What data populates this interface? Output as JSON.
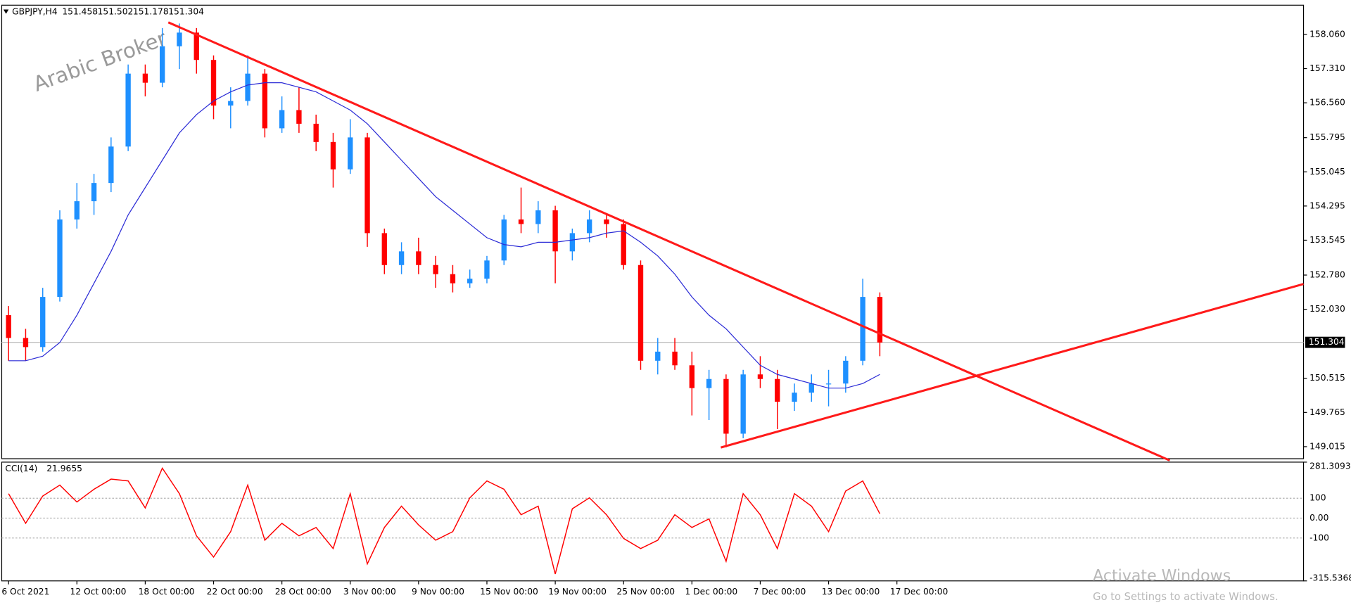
{
  "chart_data": [
    {
      "type": "candlestick",
      "title": "GBPJPY,H4",
      "ohlc_header": [
        151.458,
        151.502,
        151.178,
        151.304
      ],
      "watermark": "Arabic Broker",
      "current_price": 151.304,
      "up_color": "#1e90ff",
      "down_color": "#ff0000",
      "ma_color": "#2b2bd6",
      "xlim": [
        -0.4,
        75.8
      ],
      "xticks": [
        {
          "value": 0,
          "label": "6 Oct 2021"
        },
        {
          "value": 4,
          "label": "12 Oct 00:00"
        },
        {
          "value": 8,
          "label": "18 Oct 00:00"
        },
        {
          "value": 12,
          "label": "22 Oct 00:00"
        },
        {
          "value": 16,
          "label": "28 Oct 00:00"
        },
        {
          "value": 20,
          "label": "3 Nov 00:00"
        },
        {
          "value": 24,
          "label": "9 Nov 00:00"
        },
        {
          "value": 28,
          "label": "15 Nov 00:00"
        },
        {
          "value": 32,
          "label": "19 Nov 00:00"
        },
        {
          "value": 36,
          "label": "25 Nov 00:00"
        },
        {
          "value": 40,
          "label": "1 Dec 00:00"
        },
        {
          "value": 44,
          "label": "7 Dec 00:00"
        },
        {
          "value": 48,
          "label": "13 Dec 00:00"
        },
        {
          "value": 52,
          "label": "17 Dec 00:00"
        }
      ],
      "ylim": [
        148.751,
        158.702
      ],
      "yticks": [
        {
          "value": 158.06,
          "label": "158.060"
        },
        {
          "value": 157.31,
          "label": "157.310"
        },
        {
          "value": 156.56,
          "label": "156.560"
        },
        155.795,
        155.045,
        154.295,
        153.545,
        {
          "value": 152.78,
          "label": "152.780"
        },
        {
          "value": 152.03,
          "label": "152.030"
        },
        150.515,
        149.765,
        149.015
      ],
      "open": [
        151.9,
        151.4,
        151.2,
        152.3,
        154.0,
        154.4,
        154.8,
        155.6,
        157.2,
        157.0,
        157.8,
        158.1,
        157.5,
        156.5,
        156.6,
        157.2,
        156.0,
        156.4,
        156.1,
        155.7,
        155.1,
        155.8,
        153.7,
        153.0,
        153.3,
        153.0,
        152.8,
        152.6,
        152.7,
        153.1,
        154.0,
        153.9,
        154.2,
        153.3,
        153.7,
        154.0,
        153.9,
        153.0,
        150.9,
        151.1,
        150.8,
        150.3,
        150.5,
        149.3,
        150.6,
        150.5,
        150.0,
        150.2,
        150.4,
        150.4,
        150.9,
        152.3
      ],
      "high": [
        152.1,
        151.6,
        152.5,
        154.2,
        154.8,
        155.0,
        155.8,
        157.4,
        157.4,
        158.2,
        158.3,
        158.2,
        157.6,
        156.9,
        157.6,
        157.3,
        156.7,
        156.9,
        156.3,
        155.9,
        156.2,
        155.9,
        153.8,
        153.5,
        153.6,
        153.2,
        153.0,
        152.9,
        153.2,
        154.1,
        154.7,
        154.4,
        154.3,
        153.8,
        154.2,
        154.1,
        154.0,
        153.1,
        151.4,
        151.4,
        151.1,
        150.7,
        150.6,
        150.7,
        151.0,
        150.7,
        150.4,
        150.6,
        150.7,
        151.0,
        152.7,
        152.4
      ],
      "low": [
        150.9,
        150.9,
        151.1,
        152.2,
        153.8,
        154.1,
        154.6,
        155.5,
        156.7,
        156.9,
        157.3,
        157.2,
        156.2,
        156.0,
        156.5,
        155.8,
        155.9,
        155.9,
        155.5,
        154.7,
        155.0,
        153.4,
        152.8,
        152.8,
        152.8,
        152.5,
        152.4,
        152.5,
        152.6,
        153.0,
        153.7,
        153.7,
        152.6,
        153.1,
        153.5,
        153.6,
        152.9,
        150.7,
        150.6,
        150.7,
        149.7,
        149.6,
        149.0,
        149.2,
        150.3,
        149.4,
        149.8,
        150.0,
        149.9,
        150.2,
        150.8,
        151.0
      ],
      "close": [
        151.4,
        151.2,
        152.3,
        154.0,
        154.4,
        154.8,
        155.6,
        157.2,
        157.0,
        157.8,
        158.1,
        157.5,
        156.5,
        156.6,
        157.2,
        156.0,
        156.4,
        156.1,
        155.7,
        155.1,
        155.8,
        153.7,
        153.0,
        153.3,
        153.0,
        152.8,
        152.6,
        152.7,
        153.1,
        154.0,
        153.9,
        154.2,
        153.3,
        153.7,
        154.0,
        153.9,
        153.0,
        150.9,
        151.1,
        150.8,
        150.3,
        150.5,
        149.3,
        150.6,
        150.5,
        150.0,
        150.2,
        150.4,
        150.4,
        150.9,
        152.3,
        151.3
      ],
      "ma_values": [
        150.9,
        150.9,
        151.0,
        151.3,
        151.9,
        152.6,
        153.3,
        154.1,
        154.7,
        155.3,
        155.9,
        156.3,
        156.6,
        156.8,
        156.95,
        157.0,
        157.0,
        156.9,
        156.8,
        156.6,
        156.4,
        156.1,
        155.7,
        155.3,
        154.9,
        154.5,
        154.2,
        153.9,
        153.6,
        153.45,
        153.4,
        153.5,
        153.5,
        153.55,
        153.6,
        153.7,
        153.75,
        153.5,
        153.2,
        152.8,
        152.3,
        151.9,
        151.6,
        151.2,
        150.8,
        150.6,
        150.5,
        150.4,
        150.3,
        150.3,
        150.4,
        150.6
      ]
    },
    {
      "type": "line",
      "title": "CCI(14)",
      "current_value": 21.9655,
      "color": "#ff0000",
      "ylim": [
        -315.5368,
        281.3093
      ],
      "yticks": [
        281.3093,
        100,
        {
          "value": 0,
          "label": "0.00"
        },
        -100,
        -315.5368
      ],
      "values": [
        123,
        -26,
        111,
        166,
        81,
        145,
        196,
        187,
        51,
        251,
        123,
        -89,
        -196,
        -68,
        166,
        -111,
        -26,
        -89,
        -47,
        -153,
        123,
        -230,
        -47,
        60,
        -34,
        -111,
        -68,
        102,
        187,
        145,
        17,
        60,
        -281,
        47,
        102,
        17,
        -102,
        -153,
        -111,
        17,
        -47,
        -4,
        -217,
        123,
        17,
        -153,
        123,
        60,
        -68,
        136,
        187,
        21.97
      ]
    }
  ],
  "os_overlay": {
    "title": "Activate Windows",
    "subtitle": "Go to Settings to activate Windows."
  }
}
